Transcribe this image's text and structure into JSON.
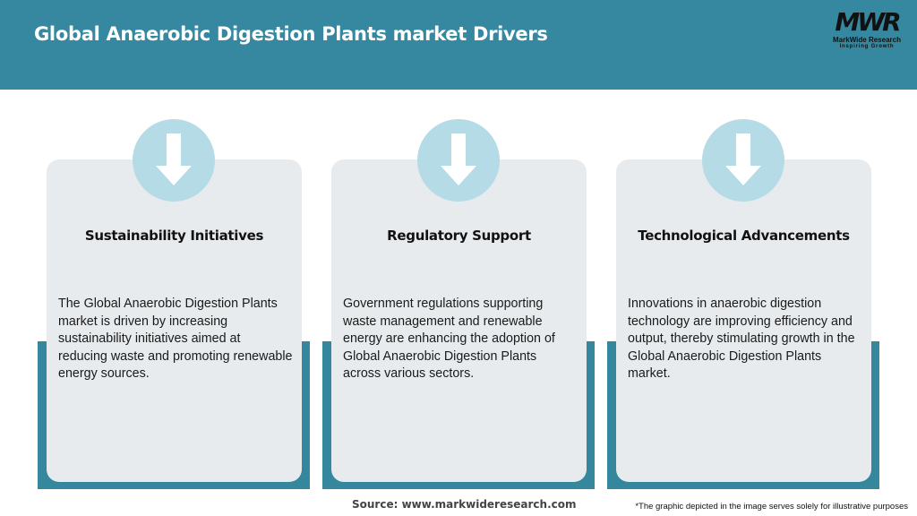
{
  "header": {
    "title": "Global Anaerobic Digestion Plants market Drivers"
  },
  "logo": {
    "mark": "MWR",
    "name": "MarkWide Research",
    "tagline": "Inspiring Growth"
  },
  "colors": {
    "header": "#35889f",
    "card": "#e8ebed",
    "circle": "#b4dbe6",
    "accent": "#34879d"
  },
  "cards": [
    {
      "icon": "arrow-down-icon",
      "title": "Sustainability Initiatives",
      "text": "The Global Anaerobic Digestion Plants market is driven by increasing sustainability initiatives aimed at reducing waste and promoting renewable energy sources."
    },
    {
      "icon": "arrow-down-icon",
      "title": "Regulatory Support",
      "text": "Government regulations supporting waste management and renewable energy are enhancing the adoption of Global Anaerobic Digestion Plants across various sectors."
    },
    {
      "icon": "arrow-down-icon",
      "title": "Technological Advancements",
      "text": "Innovations in anaerobic digestion technology are improving efficiency and output, thereby stimulating growth in the Global Anaerobic Digestion Plants market."
    }
  ],
  "footer": {
    "source": "Source: www.markwideresearch.com",
    "note": "*The graphic depicted in the image serves solely for illustrative purposes"
  }
}
